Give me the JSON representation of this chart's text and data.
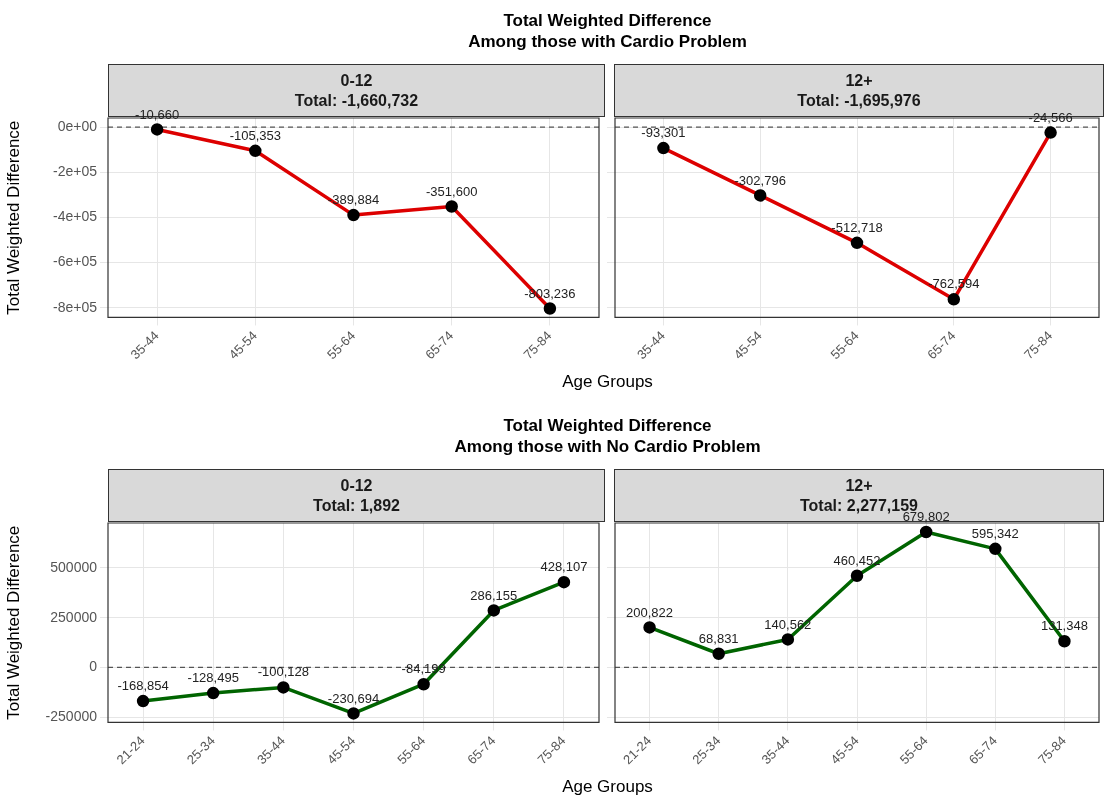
{
  "chart_data": [
    {
      "type": "line",
      "title": "Total Weighted Difference\nAmong those with Cardio Problem",
      "subtitle": "0-12\nTotal: -1,660,732",
      "xlabel": "Age Groups",
      "ylabel": "Total Weighted Difference",
      "categories": [
        "35-44",
        "45-54",
        "55-64",
        "65-74",
        "75-84"
      ],
      "series": [
        {
          "color": "#dd0000",
          "values": [
            -10660,
            -105353,
            -389884,
            -351600,
            -803236
          ],
          "value_labels": [
            "-10,660",
            "-105,353",
            "-389,884",
            "-351,600",
            "-803,236"
          ]
        }
      ],
      "ylim": [
        -843000,
        40000
      ],
      "yticks": [
        {
          "value": -800000,
          "label": "-8e+05"
        },
        {
          "value": -600000,
          "label": "-6e+05"
        },
        {
          "value": -400000,
          "label": "-4e+05"
        },
        {
          "value": -200000,
          "label": "-2e+05"
        },
        {
          "value": 0,
          "label": "0e+00"
        }
      ],
      "ref_lines": [
        {
          "axis": "y",
          "value": 0,
          "line_style": "dashed"
        }
      ],
      "grid": true,
      "marker": "circle",
      "legend": false
    },
    {
      "type": "line",
      "subtitle": "12+\nTotal: -1,695,976",
      "categories": [
        "35-44",
        "45-54",
        "55-64",
        "65-74",
        "75-84"
      ],
      "series": [
        {
          "color": "#dd0000",
          "values": [
            -93301,
            -302796,
            -512718,
            -762594,
            -24566
          ],
          "value_labels": [
            "-93,301",
            "-302,796",
            "-512,718",
            "-762,594",
            "-24,566"
          ]
        }
      ],
      "ylim": [
        -843000,
        40000
      ],
      "yticks": [
        {
          "value": -800000,
          "label": null
        },
        {
          "value": -600000,
          "label": null
        },
        {
          "value": -400000,
          "label": null
        },
        {
          "value": -200000,
          "label": null
        },
        {
          "value": 0,
          "label": null
        }
      ],
      "ref_lines": [
        {
          "axis": "y",
          "value": 0,
          "line_style": "dashed"
        }
      ],
      "grid": true,
      "marker": "circle",
      "legend": false,
      "tick_labels": "x"
    },
    {
      "type": "line",
      "title": "Total Weighted Difference\nAmong those with No Cardio Problem",
      "subtitle": "0-12\nTotal: 1,892",
      "xlabel": "Age Groups",
      "ylabel": "Total Weighted Difference",
      "categories": [
        "21-24",
        "25-34",
        "35-44",
        "45-54",
        "55-64",
        "65-74",
        "75-84"
      ],
      "series": [
        {
          "color": "#006400",
          "values": [
            -168854,
            -128495,
            -100128,
            -230694,
            -84199,
            286155,
            428107
          ],
          "value_labels": [
            "-168,854",
            "-128,495",
            "-100,128",
            "-230,694",
            "-84,199",
            "286,155",
            "428,107"
          ]
        }
      ],
      "ylim": [
        -276000,
        725000
      ],
      "yticks": [
        -250000,
        0,
        250000,
        500000
      ],
      "ref_lines": [
        {
          "axis": "y",
          "value": 0,
          "line_style": "dashed"
        }
      ],
      "grid": true,
      "marker": "circle",
      "legend": false
    },
    {
      "type": "line",
      "subtitle": "12+\nTotal: 2,277,159",
      "categories": [
        "21-24",
        "25-34",
        "35-44",
        "45-54",
        "55-64",
        "65-74",
        "75-84"
      ],
      "series": [
        {
          "color": "#006400",
          "values": [
            200822,
            68831,
            140562,
            460452,
            679802,
            595342,
            131348
          ],
          "value_labels": [
            "200,822",
            "68,831",
            "140,562",
            "460,452",
            "679,802",
            "595,342",
            "131,348"
          ]
        }
      ],
      "ylim": [
        -276000,
        725000
      ],
      "yticks": [
        {
          "value": -250000,
          "label": null
        },
        {
          "value": 0,
          "label": null
        },
        {
          "value": 250000,
          "label": null
        },
        {
          "value": 500000,
          "label": null
        }
      ],
      "ref_lines": [
        {
          "axis": "y",
          "value": 0,
          "line_style": "dashed"
        }
      ],
      "grid": true,
      "marker": "circle",
      "legend": false,
      "tick_labels": "x"
    }
  ]
}
